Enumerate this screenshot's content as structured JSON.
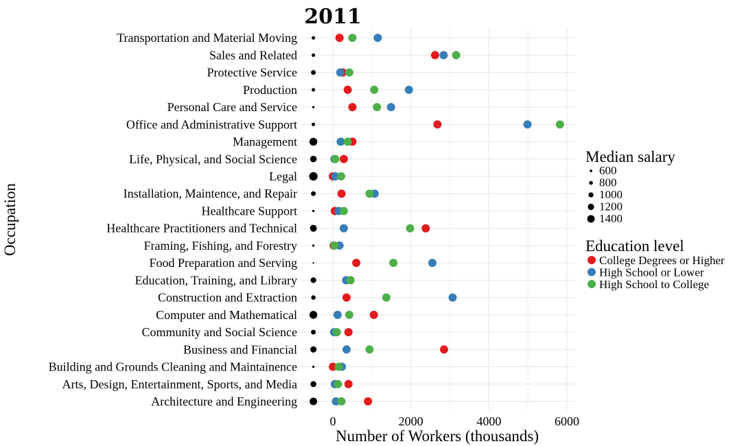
{
  "chart_data": {
    "type": "scatter",
    "title": "2011",
    "xlabel": "Number of Workers (thousands)",
    "ylabel": "Occupation",
    "xlim": [
      -550,
      6200
    ],
    "xticks": [
      0,
      2000,
      4000,
      6000
    ],
    "grid": true,
    "categories": [
      "Architecture and Engineering",
      "Arts, Design, Entertainment, Sports, and Media",
      "Building and Grounds Cleaning and Maintainence",
      "Business and Financial",
      "Community and Social Science",
      "Computer and Mathematical",
      "Construction and Extraction",
      "Education, Training, and Library",
      "Food Preparation and Serving",
      "Framing, Fishing, and Forestry",
      "Healthcare Practitioners and Technical",
      "Healthcare Support",
      "Installation, Maintence, and Repair",
      "Legal",
      "Life, Physical, and Social Science",
      "Management",
      "Office and Administrative Support",
      "Personal Care and Service",
      "Production",
      "Protective Service",
      "Sales and Related",
      "Transportation and Material Moving"
    ],
    "median_salary_x": -500,
    "median_salary": [
      1400,
      1150,
      550,
      1200,
      950,
      1450,
      900,
      1100,
      450,
      550,
      1300,
      550,
      950,
      1550,
      1250,
      1450,
      750,
      550,
      750,
      950,
      750,
      750
    ],
    "series": [
      {
        "name": "College Degrees or Higher",
        "color": "#e41a1c",
        "values": [
          900,
          400,
          0,
          2850,
          400,
          1050,
          350,
          450,
          600,
          20,
          2380,
          50,
          220,
          0,
          280,
          500,
          2680,
          500,
          380,
          250,
          2620,
          170
        ]
      },
      {
        "name": "High School or Lower",
        "color": "#377eb8",
        "values": [
          80,
          50,
          230,
          350,
          30,
          120,
          3070,
          340,
          2550,
          170,
          280,
          150,
          1070,
          60,
          40,
          200,
          4990,
          1490,
          1950,
          190,
          2840,
          1150
        ]
      },
      {
        "name": "High School to College",
        "color": "#4daf4a",
        "values": [
          220,
          130,
          150,
          940,
          100,
          420,
          1370,
          450,
          1550,
          40,
          1980,
          280,
          940,
          210,
          60,
          380,
          5820,
          1130,
          1060,
          420,
          3160,
          500
        ]
      }
    ],
    "legend": {
      "salary_title": "Median salary",
      "salary_items": [
        {
          "value": 600,
          "label": "600"
        },
        {
          "value": 800,
          "label": "800"
        },
        {
          "value": 1000,
          "label": "1000"
        },
        {
          "value": 1200,
          "label": "1200"
        },
        {
          "value": 1400,
          "label": "1400"
        }
      ],
      "education_title": "Education level",
      "placement": "right"
    }
  }
}
